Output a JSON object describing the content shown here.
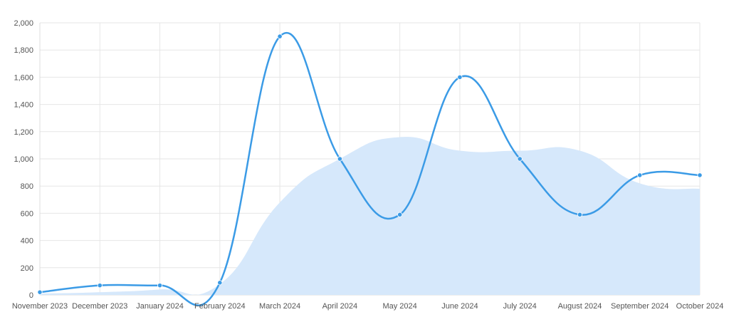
{
  "chart_data": {
    "type": "line",
    "categories": [
      "November 2023",
      "December 2023",
      "January 2024",
      "February 2024",
      "March 2024",
      "April 2024",
      "May 2024",
      "June 2024",
      "July 2024",
      "August 2024",
      "September 2024",
      "October 2024"
    ],
    "series": [
      {
        "kind": "line",
        "color": "#3b9be6",
        "values": [
          20,
          70,
          70,
          90,
          1900,
          1000,
          590,
          1600,
          1000,
          590,
          880,
          880
        ]
      },
      {
        "kind": "area",
        "color": "#d6e8fb",
        "values": [
          10,
          20,
          40,
          80,
          680,
          1000,
          1160,
          1060,
          1060,
          1060,
          820,
          780
        ]
      }
    ],
    "ylim": [
      0,
      2000
    ],
    "yticks": [
      0,
      200,
      400,
      600,
      800,
      1000,
      1200,
      1400,
      1600,
      1800,
      2000
    ],
    "grid": true,
    "legend": "none"
  }
}
